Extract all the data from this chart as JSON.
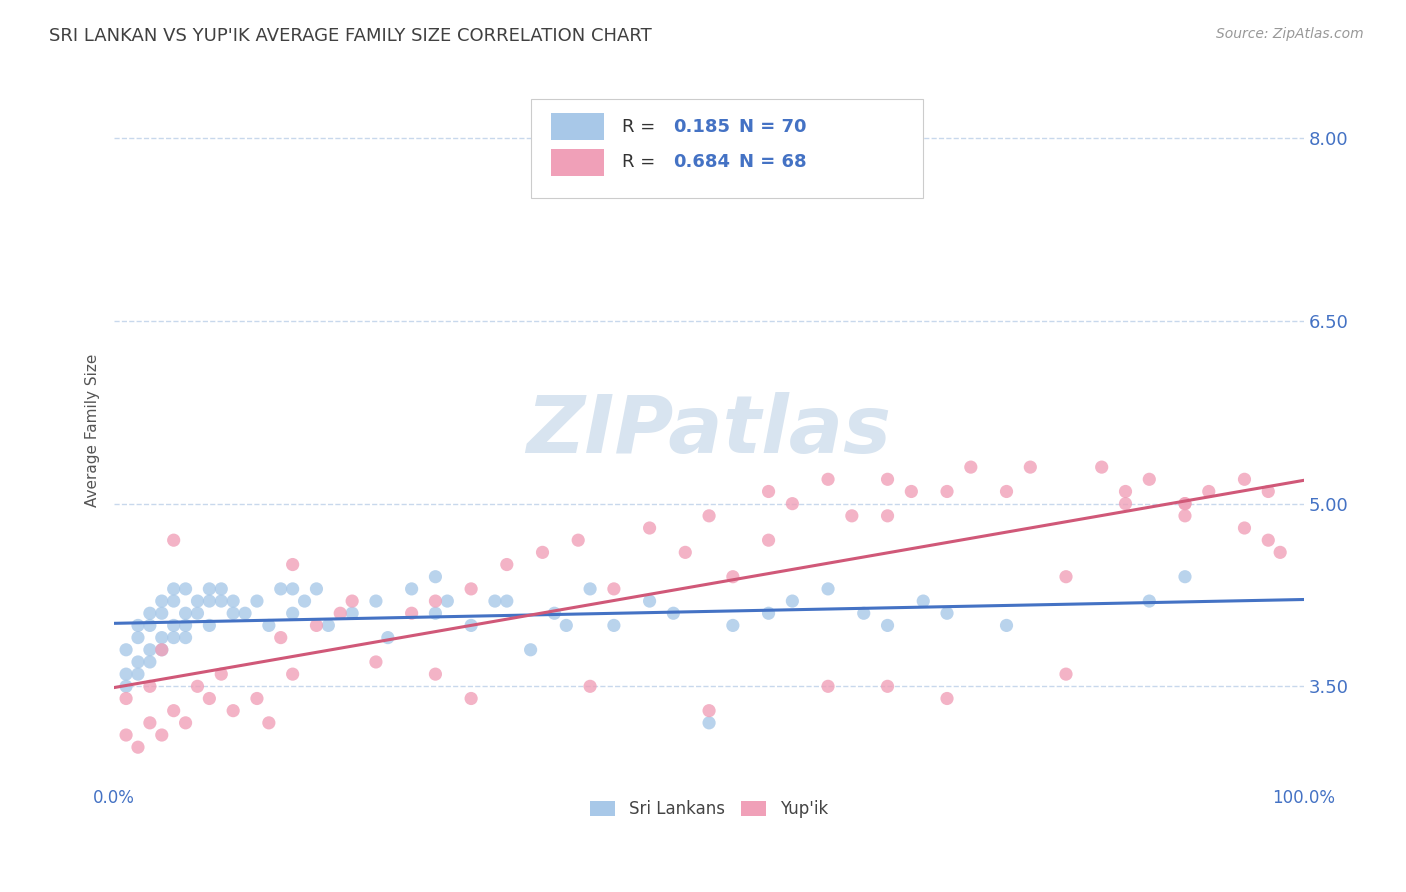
{
  "title": "SRI LANKAN VS YUP'IK AVERAGE FAMILY SIZE CORRELATION CHART",
  "source": "Source: ZipAtlas.com",
  "ylabel": "Average Family Size",
  "xlim": [
    0,
    100
  ],
  "ylim": [
    2.7,
    8.5
  ],
  "yticks": [
    3.5,
    5.0,
    6.5,
    8.0
  ],
  "blue_R": 0.185,
  "blue_N": 70,
  "pink_R": 0.684,
  "pink_N": 68,
  "blue_color": "#A8C8E8",
  "pink_color": "#F0A0B8",
  "blue_line_color": "#4472C4",
  "pink_line_color": "#D05878",
  "title_color": "#404040",
  "axis_label_color": "#555555",
  "tick_color": "#4472C4",
  "grid_color": "#C8D8EC",
  "legend_text_color": "#4472C4",
  "legend_R_label_color": "#333333",
  "background_color": "#FFFFFF",
  "watermark_text": "ZIPatlas",
  "watermark_color": "#D8E4F0",
  "blue_scatter_x": [
    1,
    1,
    1,
    2,
    2,
    2,
    2,
    3,
    3,
    3,
    3,
    4,
    4,
    4,
    4,
    5,
    5,
    5,
    5,
    6,
    6,
    6,
    6,
    7,
    7,
    8,
    8,
    8,
    9,
    9,
    10,
    10,
    11,
    12,
    13,
    14,
    15,
    15,
    16,
    17,
    18,
    20,
    22,
    23,
    25,
    27,
    27,
    28,
    30,
    32,
    33,
    35,
    37,
    38,
    40,
    42,
    45,
    47,
    50,
    52,
    55,
    57,
    60,
    63,
    65,
    68,
    70,
    75,
    87,
    90
  ],
  "blue_scatter_y": [
    3.6,
    3.5,
    3.8,
    3.7,
    3.9,
    3.6,
    4.0,
    3.8,
    4.1,
    3.7,
    4.0,
    3.9,
    4.2,
    3.8,
    4.1,
    4.0,
    4.2,
    3.9,
    4.3,
    4.1,
    3.9,
    4.3,
    4.0,
    4.1,
    4.2,
    4.0,
    4.2,
    4.3,
    4.2,
    4.3,
    4.2,
    4.1,
    4.1,
    4.2,
    4.0,
    4.3,
    4.1,
    4.3,
    4.2,
    4.3,
    4.0,
    4.1,
    4.2,
    3.9,
    4.3,
    4.1,
    4.4,
    4.2,
    4.0,
    4.2,
    4.2,
    3.8,
    4.1,
    4.0,
    4.3,
    4.0,
    4.2,
    4.1,
    3.2,
    4.0,
    4.1,
    4.2,
    4.3,
    4.1,
    4.0,
    4.2,
    4.1,
    4.0,
    4.2,
    4.4
  ],
  "pink_scatter_x": [
    1,
    1,
    2,
    3,
    3,
    4,
    4,
    5,
    5,
    6,
    7,
    8,
    9,
    10,
    12,
    13,
    14,
    15,
    15,
    17,
    19,
    20,
    22,
    25,
    27,
    27,
    30,
    33,
    36,
    39,
    42,
    45,
    48,
    50,
    52,
    55,
    55,
    57,
    60,
    62,
    65,
    65,
    67,
    70,
    72,
    75,
    77,
    80,
    83,
    85,
    87,
    90,
    90,
    92,
    95,
    97,
    60,
    65,
    70,
    80,
    85,
    90,
    95,
    97,
    98,
    50,
    40,
    30
  ],
  "pink_scatter_y": [
    3.4,
    3.1,
    3.0,
    3.2,
    3.5,
    3.1,
    3.8,
    3.3,
    4.7,
    3.2,
    3.5,
    3.4,
    3.6,
    3.3,
    3.4,
    3.2,
    3.9,
    4.5,
    3.6,
    4.0,
    4.1,
    4.2,
    3.7,
    4.1,
    4.2,
    3.6,
    4.3,
    4.5,
    4.6,
    4.7,
    4.3,
    4.8,
    4.6,
    4.9,
    4.4,
    5.1,
    4.7,
    5.0,
    5.2,
    4.9,
    5.2,
    4.9,
    5.1,
    5.1,
    5.3,
    5.1,
    5.3,
    4.4,
    5.3,
    5.1,
    5.2,
    5.0,
    4.9,
    5.1,
    5.2,
    5.1,
    3.5,
    3.5,
    3.4,
    3.6,
    5.0,
    5.0,
    4.8,
    4.7,
    4.6,
    3.3,
    3.5,
    3.4
  ],
  "title_fontsize": 13,
  "source_fontsize": 10,
  "axis_label_fontsize": 11,
  "tick_fontsize": 12,
  "legend_fontsize": 13,
  "ytick_fontsize": 13
}
